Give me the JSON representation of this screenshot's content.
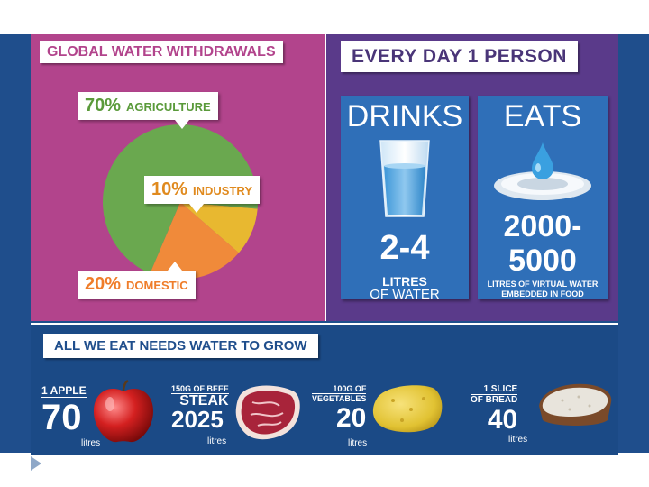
{
  "global": {
    "title": "GLOBAL WATER WITHDRAWALS",
    "segments": [
      {
        "pct": "70%",
        "name": "AGRICULTURE",
        "value": 70,
        "color": "#6aa84f"
      },
      {
        "pct": "10%",
        "name": "INDUSTRY",
        "value": 10,
        "color": "#e8b830"
      },
      {
        "pct": "20%",
        "name": "DOMESTIC",
        "value": 20,
        "color": "#f08a3a"
      }
    ]
  },
  "every_day": {
    "title": "EVERY DAY 1 PERSON",
    "drinks": {
      "title": "DRINKS",
      "value": "2-4",
      "sub1": "LITRES",
      "sub2": "OF WATER"
    },
    "eats": {
      "title": "EATS",
      "value_line1": "2000-",
      "value_line2": "5000",
      "sub1": "LITRES OF VIRTUAL WATER",
      "sub2": "EMBEDDED IN FOOD"
    }
  },
  "grow": {
    "title": "ALL WE EAT NEEDS WATER TO GROW",
    "items": [
      {
        "label": "1 APPLE",
        "value": "70",
        "unit": "litres",
        "icon": "apple-icon"
      },
      {
        "label": "150G OF BEEF",
        "label2": "STEAK",
        "value": "2025",
        "unit": "litres",
        "icon": "steak-icon"
      },
      {
        "label": "100G OF",
        "label2": "VEGETABLES",
        "value": "20",
        "unit": "litres",
        "icon": "vegetables-icon"
      },
      {
        "label": "1 SLICE",
        "label2": "OF BREAD",
        "value": "40",
        "unit": "litres",
        "icon": "bread-icon"
      }
    ]
  },
  "colors": {
    "frame": "#1f4e8c",
    "global_panel": "#b2448c",
    "every_panel": "#5a3a8a",
    "card": "#2f6fb8"
  }
}
